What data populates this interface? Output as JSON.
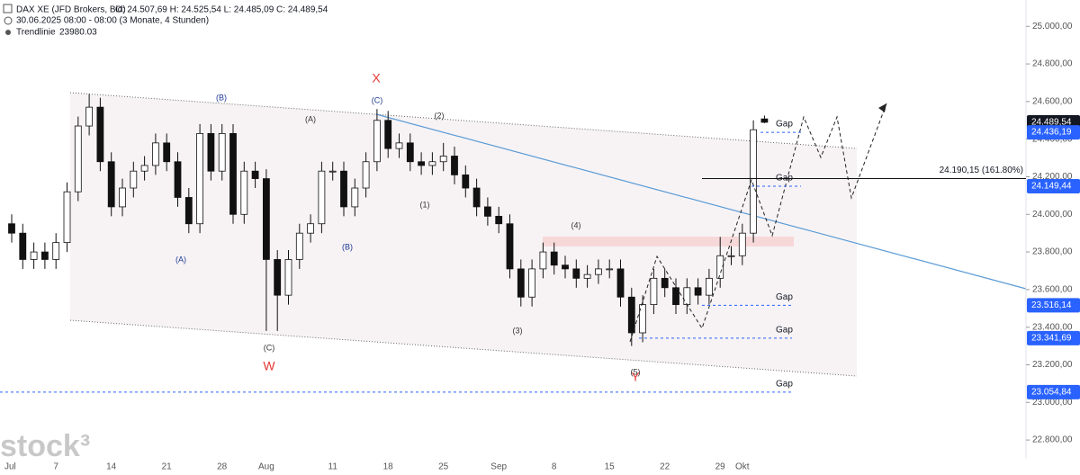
{
  "chart_data": {
    "type": "candlestick",
    "title": "DAX XE (JFD Brokers, Bid)",
    "ohlc": "O: 24.507,69  H: 24.525,54  L: 24.485,09  C: 24.489,54",
    "subtitle": "30.06.2025 08:00 - 08:00  (3 Monate, 4 Stunden)",
    "indicator": "Trendlinie",
    "indicator_value": "23980.03",
    "logo": "stock³",
    "categories": [
      "Jul",
      null,
      null,
      null,
      "7",
      null,
      null,
      null,
      null,
      "14",
      null,
      null,
      null,
      null,
      "21",
      null,
      null,
      null,
      null,
      "28",
      null,
      null,
      null,
      "Aug",
      null,
      null,
      null,
      null,
      null,
      "11",
      null,
      null,
      null,
      null,
      "18",
      null,
      null,
      null,
      null,
      "25",
      null,
      null,
      null,
      null,
      "Sep",
      null,
      null,
      null,
      null,
      "8",
      null,
      null,
      null,
      null,
      "15",
      null,
      null,
      null,
      null,
      "22",
      null,
      null,
      null,
      null,
      "29",
      null,
      "Okt",
      null,
      null
    ],
    "open": [
      23950,
      23900,
      23760,
      23800,
      23760,
      23850,
      24120,
      24470,
      24570,
      24280,
      24040,
      24140,
      24230,
      24260,
      24380,
      24280,
      24090,
      23950,
      24430,
      24230,
      24430,
      24000,
      24230,
      24190,
      23760,
      23570,
      23760,
      23900,
      23950,
      24230,
      24230,
      24040,
      24140,
      24280,
      24500,
      24350,
      24380,
      24280,
      24260,
      24280,
      24310,
      24210,
      24140,
      24040,
      23990,
      23950,
      23710,
      23560,
      23710,
      23800,
      23730,
      23710,
      23660,
      23680,
      23710,
      23710,
      23560,
      23370,
      23520,
      23660,
      23610,
      23520,
      23610,
      23570,
      23660,
      23780,
      23780,
      23900,
      24507.69
    ],
    "high": [
      24000,
      23950,
      23850,
      23850,
      23900,
      24170,
      24520,
      24640,
      24620,
      24330,
      24190,
      24280,
      24310,
      24430,
      24430,
      24330,
      24140,
      24480,
      24480,
      24480,
      24480,
      24280,
      24280,
      24240,
      23810,
      23810,
      23950,
      24000,
      24280,
      24280,
      24280,
      24190,
      24330,
      24560,
      24550,
      24430,
      24430,
      24330,
      24330,
      24380,
      24360,
      24260,
      24190,
      24090,
      24040,
      24000,
      23760,
      23760,
      23850,
      23850,
      23780,
      23760,
      23730,
      23760,
      23760,
      23760,
      23610,
      23570,
      23710,
      23710,
      23660,
      23660,
      23660,
      23710,
      23880,
      23830,
      23950,
      24500,
      24525.54
    ],
    "low": [
      23850,
      23710,
      23710,
      23710,
      23710,
      23800,
      24070,
      24420,
      24230,
      23990,
      23990,
      24090,
      24180,
      24210,
      24230,
      24040,
      23900,
      23900,
      24180,
      24180,
      23950,
      23950,
      24140,
      23380,
      23380,
      23520,
      23710,
      23850,
      23900,
      24180,
      23990,
      23990,
      24090,
      24230,
      24300,
      24300,
      24230,
      24210,
      24210,
      24230,
      24160,
      24090,
      23990,
      23940,
      23900,
      23660,
      23510,
      23510,
      23660,
      23680,
      23660,
      23610,
      23610,
      23630,
      23660,
      23510,
      23300,
      23320,
      23470,
      23560,
      23470,
      23470,
      23520,
      23520,
      23610,
      23730,
      23730,
      23850,
      24485.09
    ],
    "close": [
      23900,
      23760,
      23800,
      23760,
      23850,
      24120,
      24470,
      24570,
      24280,
      24040,
      24140,
      24230,
      24260,
      24380,
      24280,
      24090,
      23950,
      24430,
      24230,
      24430,
      24000,
      24230,
      24190,
      23760,
      23570,
      23760,
      23900,
      23950,
      24230,
      24230,
      24040,
      24140,
      24280,
      24500,
      24350,
      24380,
      24280,
      24260,
      24280,
      24310,
      24210,
      24140,
      24040,
      23990,
      23950,
      23710,
      23560,
      23710,
      23800,
      23730,
      23710,
      23660,
      23680,
      23710,
      23710,
      23560,
      23370,
      23520,
      23660,
      23610,
      23520,
      23610,
      23570,
      23660,
      23780,
      23780,
      23900,
      24450,
      24489.54
    ],
    "ylim": [
      22700,
      25140
    ],
    "yticks": [
      {
        "value": 22800,
        "label": "22.800,00"
      },
      {
        "value": 23000,
        "label": "23.000,00"
      },
      {
        "value": 23200,
        "label": "23.200,00"
      },
      {
        "value": 23400,
        "label": "23.400,00"
      },
      {
        "value": 23600,
        "label": "23.600,00"
      },
      {
        "value": 23800,
        "label": "23.800,00"
      },
      {
        "value": 24000,
        "label": "24.000,00"
      },
      {
        "value": 24200,
        "label": "24.200,00"
      },
      {
        "value": 24400,
        "label": "24.400,00"
      },
      {
        "value": 24600,
        "label": "24.600,00"
      },
      {
        "value": 24800,
        "label": "24.800,00"
      },
      {
        "value": 25000,
        "label": "25.000,00"
      }
    ],
    "price_tags": [
      {
        "value": 24489.54,
        "label": "24.489,54",
        "color": "#131722"
      },
      {
        "value": 24436.19,
        "label": "24.436,19",
        "color": "#2962ff"
      },
      {
        "value": 24149.44,
        "label": "24.149,44",
        "color": "#2962ff"
      },
      {
        "value": 23516.14,
        "label": "23.516,14",
        "color": "#2962ff"
      },
      {
        "value": 23341.69,
        "label": "23.341,69",
        "color": "#2962ff"
      },
      {
        "value": 23054.84,
        "label": "23.054,84",
        "color": "#2962ff"
      }
    ],
    "gap_label": [
      "Gap",
      "Gap",
      "Gap",
      "Gap",
      "Gap"
    ],
    "fib_level": {
      "value": 24190.15,
      "label": "24.190,15 (161.80%)"
    },
    "wave_labels": [
      "(B)",
      "(A)",
      "(C)",
      "X",
      "(2)",
      "(1)",
      "(A)",
      "(B)",
      "(C)",
      "W",
      "(4)",
      "(3)",
      "(5)",
      "Y"
    ]
  }
}
